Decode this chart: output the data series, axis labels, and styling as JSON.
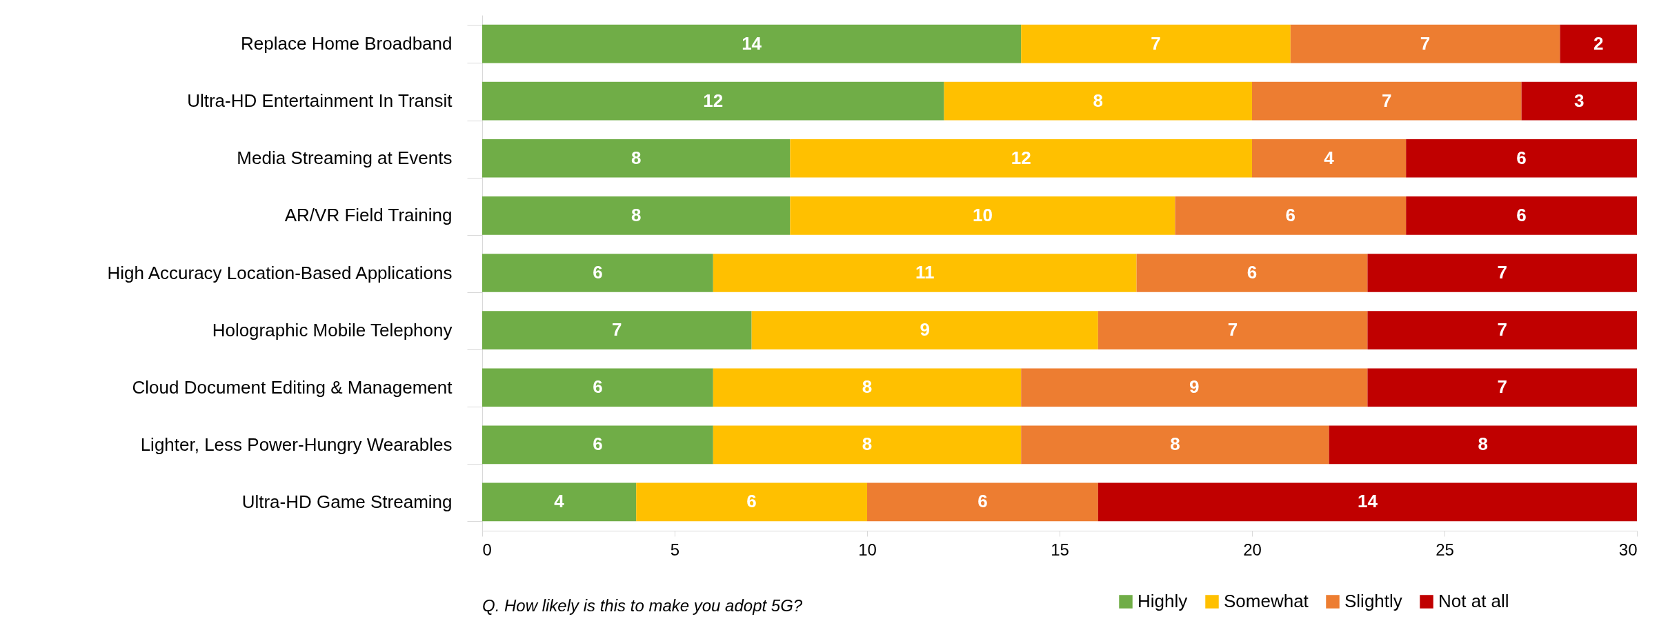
{
  "chart_data": {
    "type": "bar",
    "orientation": "horizontal",
    "stacked": true,
    "data_labels": true,
    "categories": [
      "Replace Home Broadband",
      "Ultra-HD Entertainment In Transit",
      "Media Streaming at Events",
      "AR/VR Field Training",
      "High Accuracy Location-Based Applications",
      "Holographic Mobile Telephony",
      "Cloud Document Editing & Management",
      "Lighter, Less Power-Hungry Wearables",
      "Ultra-HD Game Streaming"
    ],
    "series": [
      {
        "name": "Highly",
        "color": "#70ad47",
        "values": [
          14,
          12,
          8,
          8,
          6,
          7,
          6,
          6,
          4
        ]
      },
      {
        "name": "Somewhat",
        "color": "#ffc000",
        "values": [
          7,
          8,
          12,
          10,
          11,
          9,
          8,
          8,
          6
        ]
      },
      {
        "name": "Slightly",
        "color": "#ed7d31",
        "values": [
          7,
          7,
          4,
          6,
          6,
          7,
          9,
          8,
          6
        ]
      },
      {
        "name": "Not at all",
        "color": "#c00000",
        "values": [
          2,
          3,
          6,
          6,
          7,
          7,
          7,
          8,
          14
        ]
      }
    ],
    "xlim": [
      0,
      30
    ],
    "xticks": [
      0,
      5,
      10,
      15,
      20,
      25,
      30
    ],
    "grid": false,
    "legend": "bottom right",
    "annotations": [
      "Q. How likely is this to make you adopt 5G?"
    ]
  }
}
